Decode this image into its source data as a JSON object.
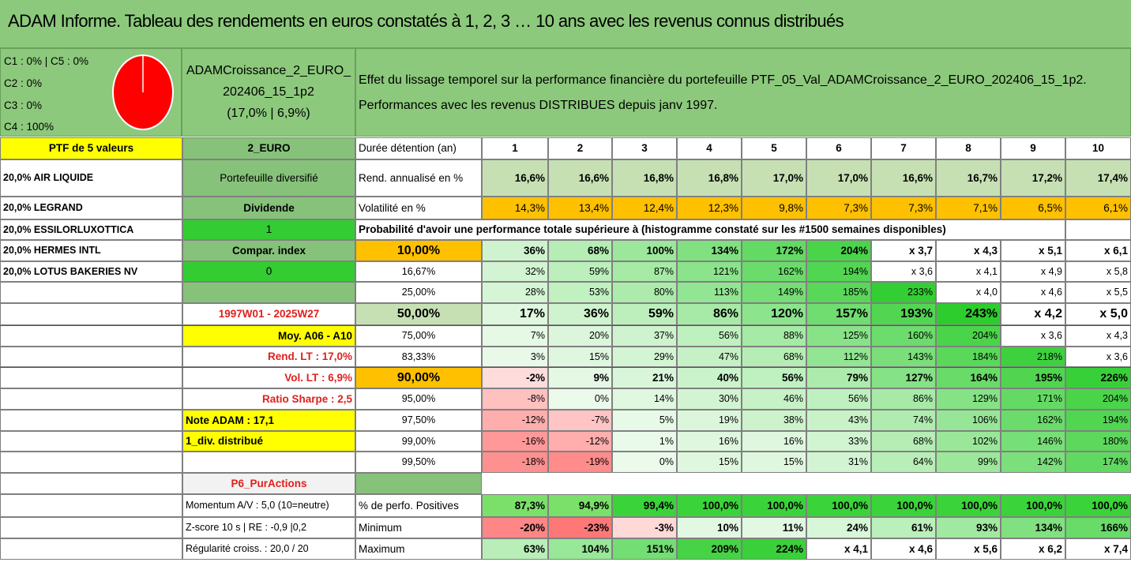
{
  "title": "ADAM Informe. Tableau des rendements en euros constatés à 1, 2, 3 … 10 ans avec les revenus connus distribués",
  "allocation": {
    "lines": [
      "C1 : 0% | C5 : 0%",
      "C2 : 0%",
      "C3 : 0%",
      "C4 : 100%"
    ],
    "pie_color": "#ff0000"
  },
  "fund": {
    "line1": "ADAMCroissance_2_EURO_",
    "line2": "202406_15_1p2",
    "line3": "(17,0% | 6,9%)"
  },
  "description": {
    "line1": "Effet du lissage temporel sur la performance financière du portefeuille PTF_05_Val_ADAMCroissance_2_EURO_202406_15_1p2.",
    "line2": "Performances avec les revenus DISTRIBUES depuis janv 1997."
  },
  "left": {
    "ptf": "PTF de 5 valeurs",
    "holdings": [
      "20,0% AIR LIQUIDE",
      "20,0% LEGRAND",
      "20,0% ESSILORLUXOTTICA",
      "20,0% HERMES INTL",
      "20,0% LOTUS BAKERIES NV"
    ]
  },
  "mid": {
    "currency": "2_EURO",
    "portfolio": "Portefeuille diversifié",
    "dividend": "Dividende",
    "dividend_val": "1",
    "compar": "Compar. index",
    "compar_val": "0",
    "period": "1997W01 - 2025W27",
    "moy": "Moy. A06 - A10",
    "rend_lt": "Rend. LT : 17,0%",
    "vol_lt": "Vol. LT : 6,9%",
    "sharpe": "Ratio Sharpe : 2,5",
    "note": "Note ADAM : 17,1",
    "div_distrib": "1_div. distribué",
    "p6": "P6_PurActions",
    "momentum": "Momentum A/V : 5,0 (10=neutre)",
    "zscore": "Z-score 10 s | RE : -0,9 |0,2",
    "regularite": "Régularité croiss. : 20,0 / 20"
  },
  "table": {
    "duree_label": "Durée détention (an)",
    "years": [
      "1",
      "2",
      "3",
      "4",
      "5",
      "6",
      "7",
      "8",
      "9",
      "10"
    ],
    "rend_label": "Rend. annualisé en %",
    "rend": [
      "16,6%",
      "16,6%",
      "16,8%",
      "16,8%",
      "17,0%",
      "17,0%",
      "16,6%",
      "16,7%",
      "17,2%",
      "17,4%"
    ],
    "vol_label": "Volatilité en %",
    "vol": [
      "14,3%",
      "13,4%",
      "12,4%",
      "12,3%",
      "9,8%",
      "7,3%",
      "7,3%",
      "7,1%",
      "6,5%",
      "6,1%"
    ],
    "proba_label": "Probabilité d'avoir une performance totale supérieure à (histogramme constaté sur les #1500 semaines disponibles)",
    "quantiles": [
      {
        "p": "10,00%",
        "vals": [
          "36%",
          "68%",
          "100%",
          "134%",
          "172%",
          "204%",
          "x 3,7",
          "x 4,3",
          "x 5,1",
          "x 6,1"
        ]
      },
      {
        "p": "16,67%",
        "vals": [
          "32%",
          "59%",
          "87%",
          "121%",
          "162%",
          "194%",
          "x 3,6",
          "x 4,1",
          "x 4,9",
          "x 5,8"
        ]
      },
      {
        "p": "25,00%",
        "vals": [
          "28%",
          "53%",
          "80%",
          "113%",
          "149%",
          "185%",
          "233%",
          "x 4,0",
          "x 4,6",
          "x 5,5"
        ]
      },
      {
        "p": "50,00%",
        "vals": [
          "17%",
          "36%",
          "59%",
          "86%",
          "120%",
          "157%",
          "193%",
          "243%",
          "x 4,2",
          "x 5,0"
        ]
      },
      {
        "p": "75,00%",
        "vals": [
          "7%",
          "20%",
          "37%",
          "56%",
          "88%",
          "125%",
          "160%",
          "204%",
          "x 3,6",
          "x 4,3"
        ]
      },
      {
        "p": "83,33%",
        "vals": [
          "3%",
          "15%",
          "29%",
          "47%",
          "68%",
          "112%",
          "143%",
          "184%",
          "218%",
          "x 3,6"
        ]
      },
      {
        "p": "90,00%",
        "vals": [
          "-2%",
          "9%",
          "21%",
          "40%",
          "56%",
          "79%",
          "127%",
          "164%",
          "195%",
          "226%"
        ]
      },
      {
        "p": "95,00%",
        "vals": [
          "-8%",
          "0%",
          "14%",
          "30%",
          "46%",
          "56%",
          "86%",
          "129%",
          "171%",
          "204%"
        ]
      },
      {
        "p": "97,50%",
        "vals": [
          "-12%",
          "-7%",
          "5%",
          "19%",
          "38%",
          "43%",
          "74%",
          "106%",
          "162%",
          "194%"
        ]
      },
      {
        "p": "99,00%",
        "vals": [
          "-16%",
          "-12%",
          "1%",
          "16%",
          "16%",
          "33%",
          "68%",
          "102%",
          "146%",
          "180%"
        ]
      },
      {
        "p": "99,50%",
        "vals": [
          "-18%",
          "-19%",
          "0%",
          "15%",
          "15%",
          "31%",
          "64%",
          "99%",
          "142%",
          "174%"
        ]
      }
    ],
    "pos_label": "% de perfo. Positives",
    "pos": [
      "87,3%",
      "94,9%",
      "99,4%",
      "100,0%",
      "100,0%",
      "100,0%",
      "100,0%",
      "100,0%",
      "100,0%",
      "100,0%"
    ],
    "min_label": "Minimum",
    "min": [
      "-20%",
      "-23%",
      "-3%",
      "10%",
      "11%",
      "24%",
      "61%",
      "93%",
      "134%",
      "166%"
    ],
    "max_label": "Maximum",
    "max": [
      "63%",
      "104%",
      "151%",
      "209%",
      "224%",
      "x 4,1",
      "x 4,6",
      "x 5,6",
      "x 6,2",
      "x 7,4"
    ]
  },
  "colors": {
    "title_green": "#8cc97c",
    "yellow": "#ffff00",
    "orange": "#ffc000",
    "bright_green": "#33cc33",
    "mid_green": "#86c27a",
    "header_green": "#c6e0b4",
    "red_text": "#e0201c"
  }
}
